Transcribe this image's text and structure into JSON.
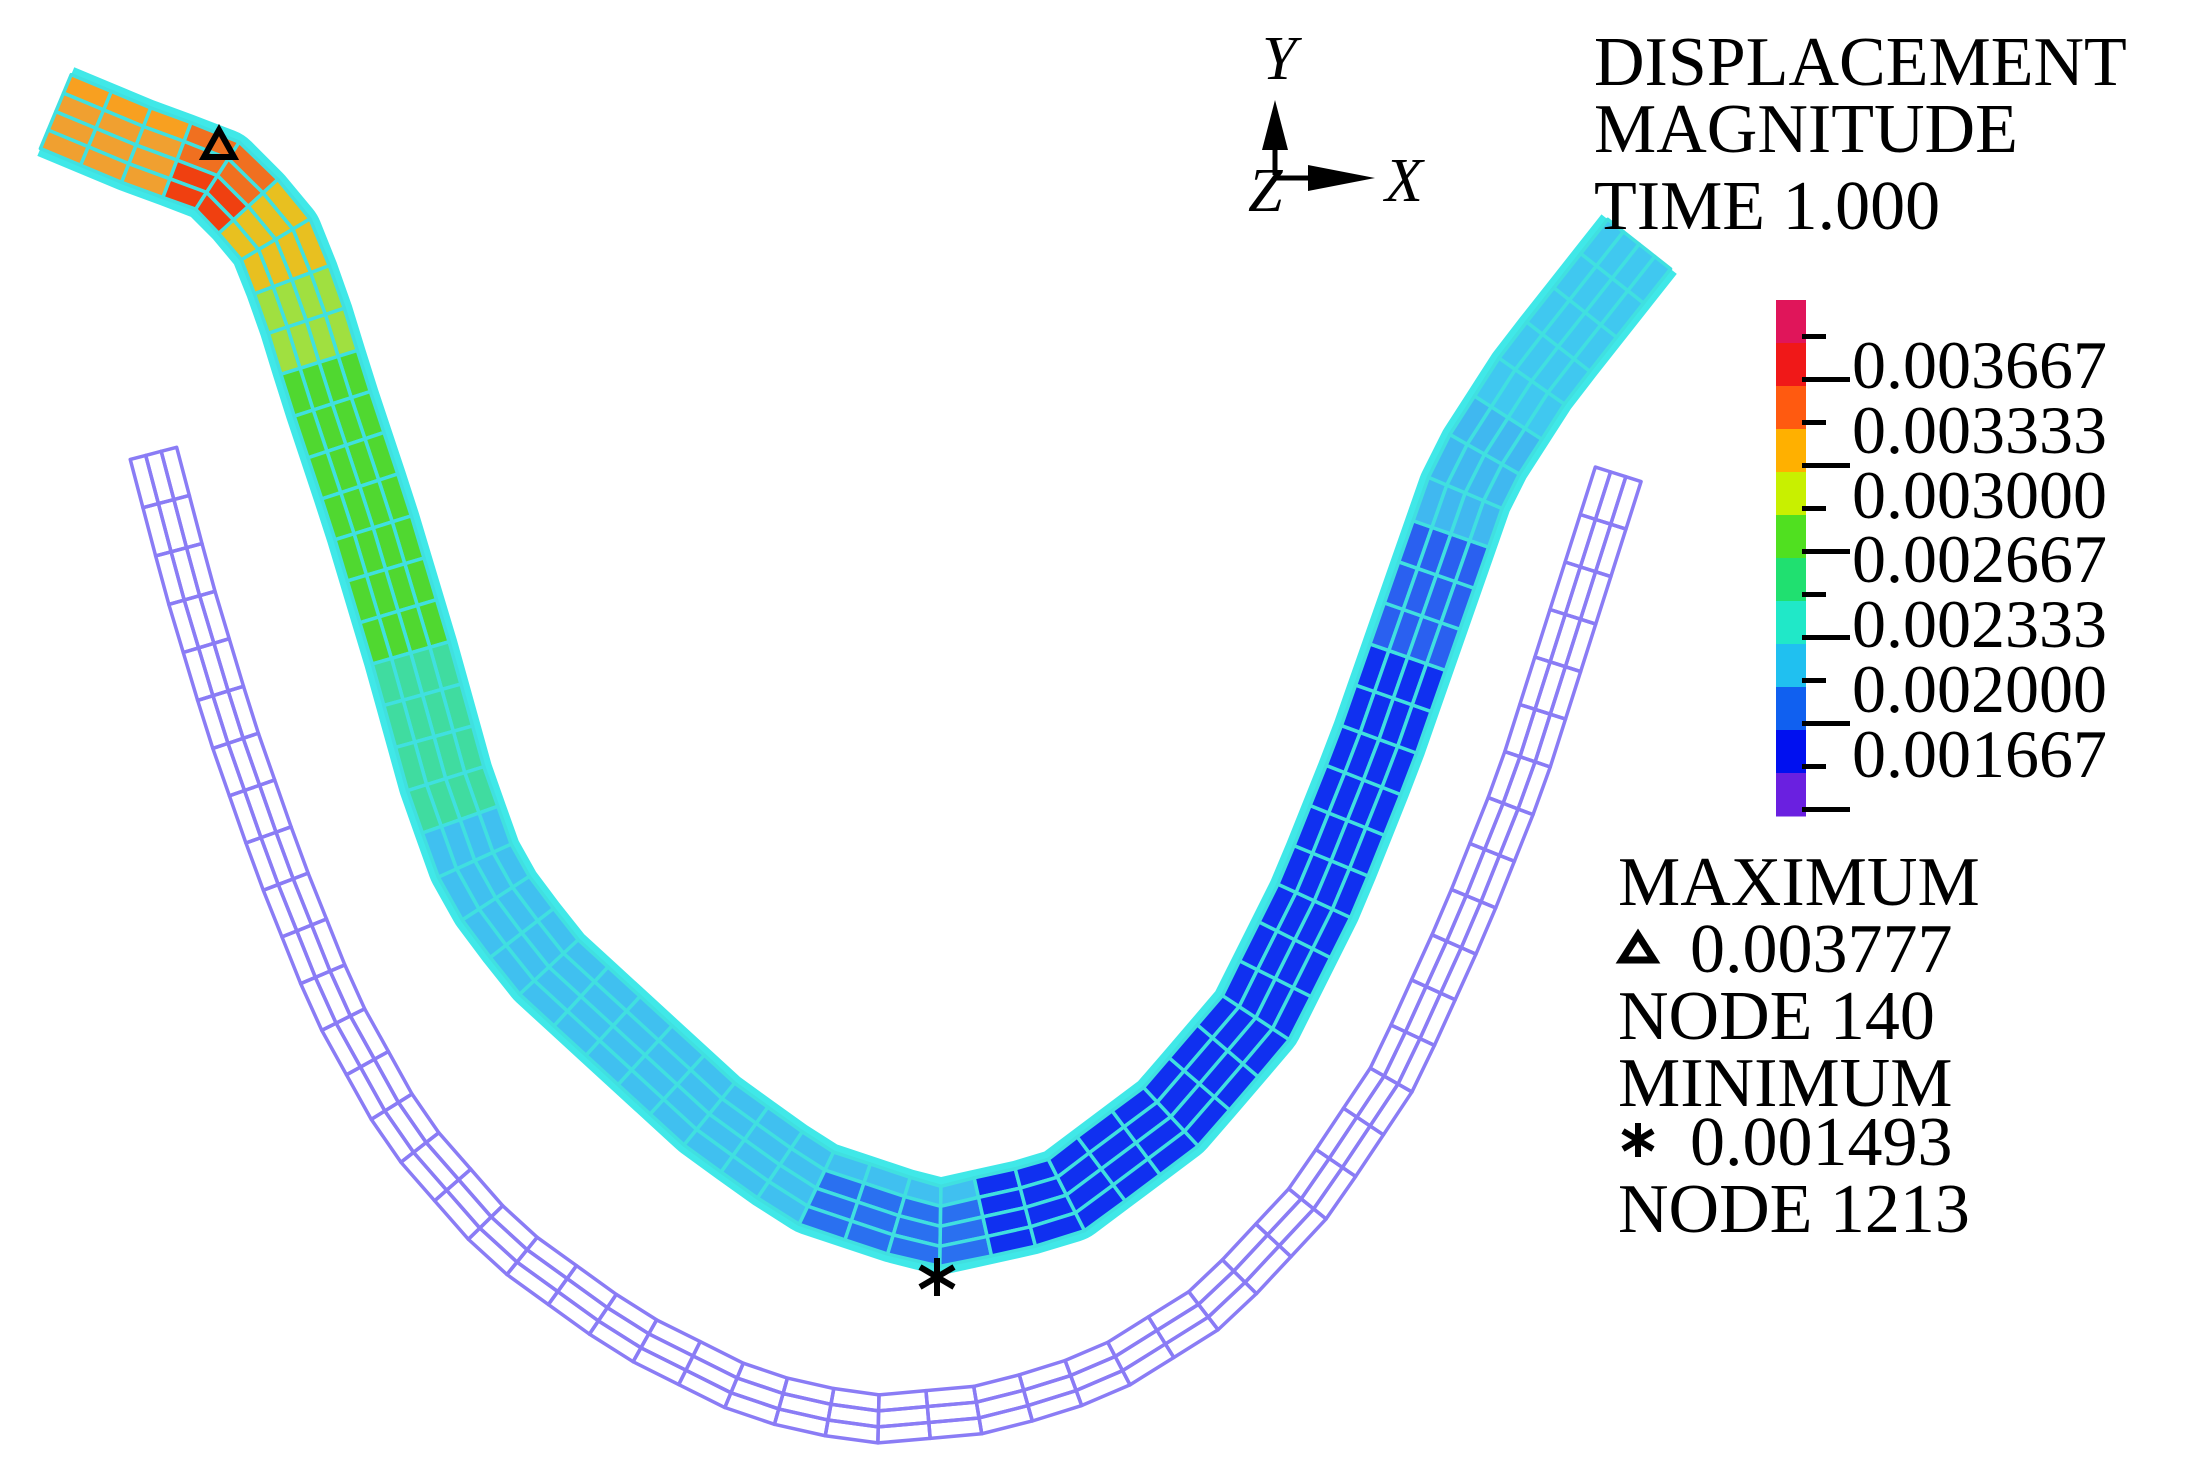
{
  "header": {
    "lines": [
      "DISPLACEMENT",
      "MAGNITUDE",
      "TIME 1.000"
    ]
  },
  "axes": {
    "y": "Y",
    "x": "X",
    "z": "Z"
  },
  "legend": {
    "labels": [
      "0.003667",
      "0.003333",
      "0.003000",
      "0.002667",
      "0.002333",
      "0.002000",
      "0.001667"
    ],
    "colors": [
      "#e0155a",
      "#f01818",
      "#ff5a10",
      "#ffb000",
      "#c8f000",
      "#50e020",
      "#20e070",
      "#20e8c8",
      "#20c0f0",
      "#1060f0",
      "#0010f0",
      "#6a20e0"
    ]
  },
  "extremes": {
    "maximum_label": "MAXIMUM",
    "maximum_symbol": "triangle",
    "maximum_value": "0.003777",
    "maximum_node": "NODE 140",
    "minimum_label": "MINIMUM",
    "minimum_symbol": "asterisk",
    "minimum_value": "0.001493",
    "minimum_node": "NODE 1213"
  }
}
